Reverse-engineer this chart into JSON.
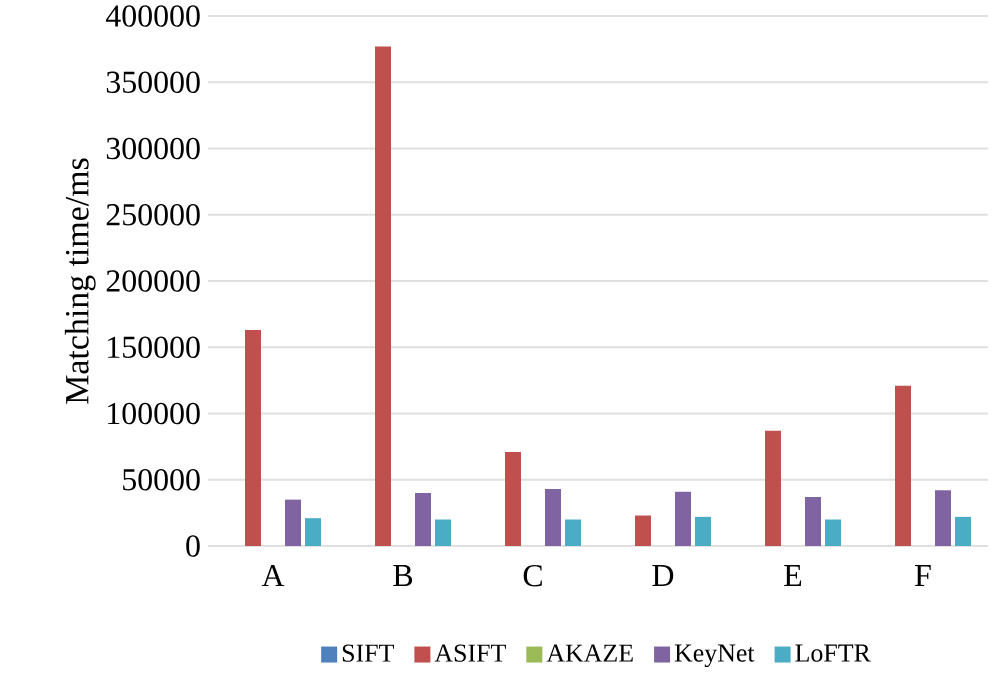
{
  "chart_data": {
    "type": "bar",
    "ylabel": "Matching time/ms",
    "categories": [
      "A",
      "B",
      "C",
      "D",
      "E",
      "F"
    ],
    "series": [
      {
        "name": "SIFT",
        "color": "#4f81bd",
        "values": [
          0,
          0,
          0,
          0,
          0,
          0
        ]
      },
      {
        "name": "ASIFT",
        "color": "#c0504d",
        "values": [
          163000,
          377000,
          71000,
          23000,
          87000,
          121000
        ]
      },
      {
        "name": "AKAZE",
        "color": "#9bbb59",
        "values": [
          0,
          0,
          0,
          0,
          0,
          0
        ]
      },
      {
        "name": "KeyNet",
        "color": "#8064a2",
        "values": [
          35000,
          40000,
          43000,
          41000,
          37000,
          42000
        ]
      },
      {
        "name": "LoFTR",
        "color": "#4bacc6",
        "values": [
          21000,
          20000,
          20000,
          22000,
          20000,
          22000
        ]
      }
    ],
    "ylim": [
      0,
      400000
    ],
    "yticks": [
      0,
      50000,
      100000,
      150000,
      200000,
      250000,
      300000,
      350000,
      400000
    ],
    "grid": "y",
    "legend": "bottom"
  }
}
